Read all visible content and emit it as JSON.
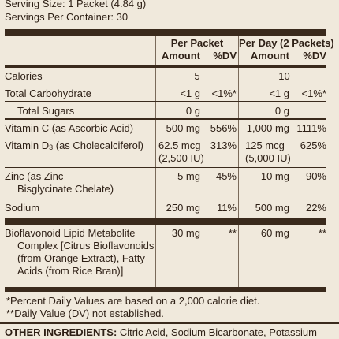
{
  "header": {
    "serving_size": "Serving Size: 1 Packet (4.84 g)",
    "servings_per_container": "Servings Per Container: 30"
  },
  "columns": {
    "per_packet_title": "Per Packet",
    "per_day_title": "Per Day (2 Packets)",
    "amount_label": "Amount",
    "dv_label": "%DV"
  },
  "rows": {
    "calories": {
      "name": "Calories",
      "pp_amt": "5",
      "pd_amt": "10"
    },
    "total_carb": {
      "name": "Total Carbohydrate",
      "pp_amt": "<1 g",
      "pp_dv": "<1%*",
      "pd_amt": "<1 g",
      "pd_dv": "<1%*"
    },
    "total_sugars": {
      "name": "Total Sugars",
      "pp_amt": "0 g",
      "pd_amt": "0 g"
    },
    "vitamin_c": {
      "name": "Vitamin C (as Ascorbic Acid)",
      "pp_amt": "500 mg",
      "pp_dv": "556%",
      "pd_amt": "1,000 mg",
      "pd_dv": "1111%"
    },
    "vitamin_d3": {
      "name_prefix": "Vitamin D",
      "name_sub": "3",
      "name_suffix": " (as Cholecalciferol)",
      "pp_amt_line1": "62.5 mcg",
      "pp_amt_line2": "(2,500 IU)",
      "pp_dv": "313%",
      "pd_amt_line1": "125 mcg",
      "pd_amt_line2": "(5,000 IU)",
      "pd_dv": "625%"
    },
    "zinc": {
      "name_line1": "Zinc (as Zinc",
      "name_line2": "Bisglycinate Chelate)",
      "pp_amt": "5 mg",
      "pp_dv": "45%",
      "pd_amt": "10 mg",
      "pd_dv": "90%"
    },
    "sodium": {
      "name": "Sodium",
      "pp_amt": "250 mg",
      "pp_dv": "11%",
      "pd_amt": "500 mg",
      "pd_dv": "22%"
    },
    "bioflavonoid": {
      "name_line1": "Bioflavonoid Lipid Metabolite",
      "name_line2": "Complex [Citrus Bioflavonoids",
      "name_line3": "(from Orange Extract), Fatty",
      "name_line4": "Acids (from Rice Bran)]",
      "pp_amt": "30 mg",
      "pp_dv": "**",
      "pd_amt": "60 mg",
      "pd_dv": "**"
    }
  },
  "footnotes": {
    "line1": "*Percent Daily Values are based on a 2,000 calorie diet.",
    "line2": "**Daily Value (DV) not established."
  },
  "other_ingredients": {
    "label": "OTHER INGREDIENTS:",
    "text": " Citric Acid, Sodium Bicarbonate, Potassium"
  }
}
